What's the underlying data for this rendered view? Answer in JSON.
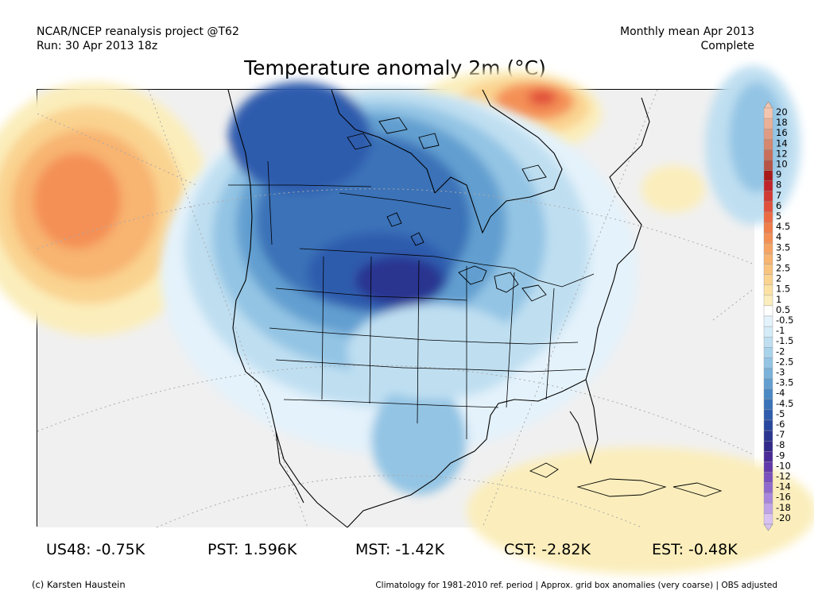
{
  "header": {
    "project": "NCAR/NCEP reanalysis project @T62",
    "run": "Run: 30 Apr 2013 18z",
    "period": "Monthly mean Apr 2013",
    "status": "Complete"
  },
  "title": "Temperature anomaly 2m (°C)",
  "map": {
    "region": "North America",
    "projection": "polar stereographic"
  },
  "colorbar": {
    "labels": [
      "20",
      "18",
      "16",
      "14",
      "12",
      "10",
      "9",
      "8",
      "7",
      "6",
      "5",
      "4.5",
      "4",
      "3.5",
      "3",
      "2.5",
      "2",
      "1.5",
      "1",
      "0.5",
      "-0.5",
      "-1",
      "-1.5",
      "-2",
      "-2.5",
      "-3",
      "-3.5",
      "-4",
      "-4.5",
      "-5",
      "-6",
      "-7",
      "-8",
      "-9",
      "-10",
      "-12",
      "-14",
      "-16",
      "-18",
      "-20"
    ],
    "colors": [
      "#f4c5ae",
      "#eab198",
      "#df9c84",
      "#d5876f",
      "#c96e5a",
      "#b65446",
      "#a81a1a",
      "#c0242a",
      "#d13a32",
      "#e1503b",
      "#ec6a43",
      "#f07e4a",
      "#f49056",
      "#f6a463",
      "#f8b471",
      "#f9c480",
      "#fad390",
      "#fbe2a4",
      "#fbeebc",
      "#ffffff",
      "#e4f2fb",
      "#d4ebf8",
      "#bfdff1",
      "#a9d2eb",
      "#93c4e4",
      "#7ab2da",
      "#629fd0",
      "#4a89c4",
      "#3a72b8",
      "#2f5cad",
      "#28479e",
      "#2a3690",
      "#322a8a",
      "#4a2a97",
      "#6238ab",
      "#7950bd",
      "#8f69cc",
      "#a886db",
      "#bfa3e6",
      "#d8c2f1"
    ]
  },
  "stats": [
    {
      "label": "US48:",
      "value": "-0.75K"
    },
    {
      "label": "PST:",
      "value": "1.596K"
    },
    {
      "label": "MST:",
      "value": "-1.42K"
    },
    {
      "label": "CST:",
      "value": "-2.82K"
    },
    {
      "label": "EST:",
      "value": "-0.48K"
    }
  ],
  "footer": {
    "credit": "(c) Karsten Haustein",
    "note": "Climatology for 1981-2010 ref. period | Approx. grid box anomalies (very coarse) | OBS adjusted"
  }
}
